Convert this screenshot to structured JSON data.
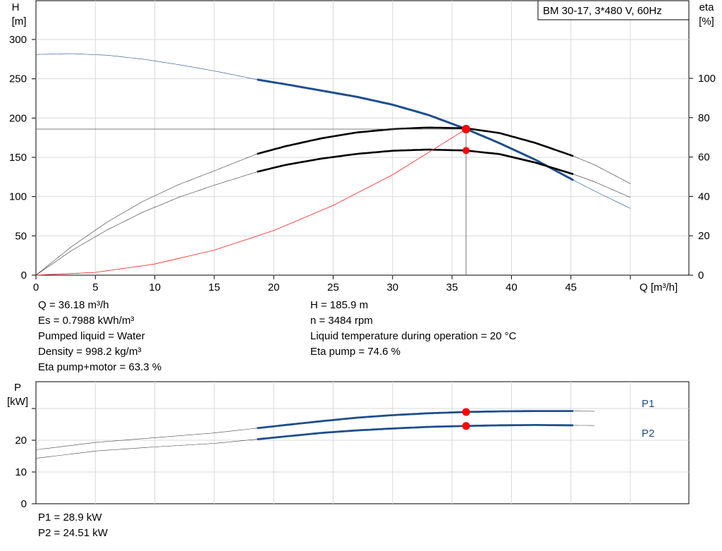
{
  "title": "BM 30-17, 3*480 V, 60Hz",
  "head_chart": {
    "y_axis_label": [
      "H",
      "[m]"
    ],
    "y2_axis_label": [
      "eta",
      "[%]"
    ],
    "x_axis_label": "Q [m³/h]"
  },
  "operating_point": {
    "left": [
      "Q = 36.18 m³/h",
      "Es = 0.7988 kWh/m³",
      "Pumped liquid = Water",
      "Density = 998.2 kg/m³",
      "Eta pump+motor = 63.3 %"
    ],
    "right": [
      "H = 185.9 m",
      "n = 3484 rpm",
      "Liquid temperature during operation = 20 °C",
      "Eta pump = 74.6 %"
    ]
  },
  "power_chart": {
    "y_axis_label": [
      "P",
      "[kW]"
    ],
    "series_labels": [
      "P1",
      "P2"
    ]
  },
  "power_values": [
    "P1 = 28.9 kW",
    "P2 = 24.51 kW"
  ],
  "colors": {
    "head_curve": "#1f4e8c",
    "eta_curve": "#000000",
    "system_curve": "#ff2020",
    "power_curve": "#1f4e8c",
    "op_marker": "#ff0000",
    "grid": "#d8d8d8"
  },
  "chart_data": [
    {
      "type": "line",
      "title": "BM 30-17, 3*480 V, 60Hz",
      "xlabel": "Q [m³/h]",
      "ylabel": "H [m]",
      "y2label": "eta [%]",
      "xlim": [
        0,
        50
      ],
      "ylim": [
        0,
        300
      ],
      "y2lim": [
        0,
        120
      ],
      "xticks": [
        0,
        5,
        10,
        15,
        20,
        25,
        30,
        35,
        40,
        45
      ],
      "yticks": [
        0,
        50,
        100,
        150,
        200,
        250,
        300
      ],
      "y2ticks": [
        0,
        20,
        40,
        60,
        80,
        100
      ],
      "grid": true,
      "operating_range": [
        18.6,
        45.2
      ],
      "series": [
        {
          "name": "H",
          "axis": "left",
          "x": [
            0,
            3,
            6,
            9,
            12,
            15,
            18.6,
            21,
            24,
            27,
            30,
            33,
            36.2,
            39,
            42,
            45.2,
            47,
            50
          ],
          "y": [
            281,
            282,
            280,
            275,
            268,
            260,
            249,
            243,
            235,
            227,
            217,
            204,
            186,
            168,
            147,
            121,
            107,
            85
          ]
        },
        {
          "name": "eta pump",
          "axis": "right",
          "x": [
            0,
            3,
            6,
            9,
            12,
            15,
            18.6,
            21,
            24,
            27,
            30,
            33,
            36.2,
            39,
            42,
            45.2,
            47,
            50
          ],
          "y": [
            0,
            14.5,
            27,
            37.5,
            46,
            53,
            61.6,
            65.5,
            69.5,
            72.5,
            74.2,
            75,
            74.6,
            72.2,
            67.2,
            60.5,
            56,
            46.5
          ]
        },
        {
          "name": "eta pump+motor",
          "axis": "right",
          "x": [
            0,
            3,
            6,
            9,
            12,
            15,
            18.6,
            21,
            24,
            27,
            30,
            33,
            36.2,
            39,
            42,
            45.2,
            47,
            50
          ],
          "y": [
            0,
            12.5,
            23,
            32,
            39.5,
            45.7,
            52.5,
            56,
            59.2,
            61.6,
            63.2,
            63.8,
            63.3,
            61.5,
            57.2,
            51.3,
            47.4,
            39.5
          ]
        },
        {
          "name": "system curve",
          "axis": "left",
          "x": [
            0,
            5,
            10,
            15,
            20,
            25,
            30,
            36.18
          ],
          "y": [
            0,
            3.5,
            14.2,
            31.9,
            56.8,
            88.8,
            127.8,
            185.9
          ]
        }
      ],
      "operating_point": {
        "q": 36.18,
        "h": 185.9,
        "eta_pump": 74.6,
        "eta_pump_motor": 63.3
      }
    },
    {
      "type": "line",
      "ylabel": "P [kW]",
      "xlim": [
        0,
        50
      ],
      "ylim": [
        0,
        35
      ],
      "yticks": [
        0,
        10,
        20
      ],
      "grid": true,
      "operating_range": [
        18.6,
        45.2
      ],
      "series": [
        {
          "name": "P1",
          "x": [
            0,
            5,
            10,
            15,
            18.6,
            21,
            24,
            27,
            30,
            33,
            36.2,
            39,
            42,
            45.2,
            50
          ],
          "y": [
            17,
            19.3,
            20.8,
            22.3,
            23.8,
            24.8,
            26,
            27.1,
            27.9,
            28.5,
            28.9,
            29.1,
            29.2,
            29.2,
            29.0
          ]
        },
        {
          "name": "P2",
          "x": [
            0,
            5,
            10,
            15,
            18.6,
            21,
            24,
            27,
            30,
            33,
            36.2,
            39,
            42,
            45.2,
            50
          ],
          "y": [
            14.3,
            16.6,
            17.9,
            19.0,
            20.3,
            21.2,
            22.3,
            23.1,
            23.7,
            24.2,
            24.51,
            24.7,
            24.8,
            24.7,
            24.5
          ]
        }
      ],
      "operating_point": {
        "q": 36.18,
        "p1": 28.9,
        "p2": 24.51
      }
    }
  ]
}
